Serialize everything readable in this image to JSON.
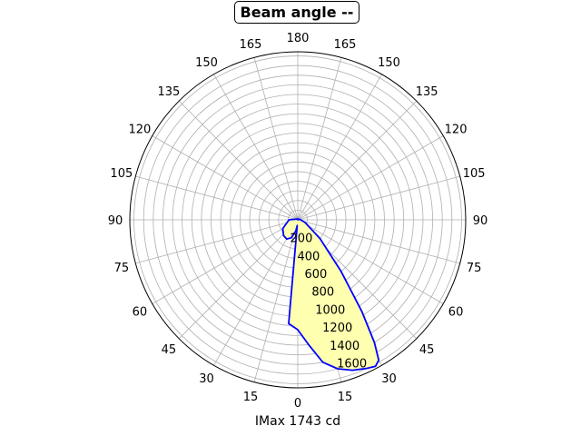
{
  "chart_data": {
    "type": "polar",
    "title": "Beam angle --",
    "xlabel": "IMax 1743 cd",
    "angle_tick_labels_left": [
      "0",
      "15",
      "30",
      "45",
      "60",
      "75",
      "90",
      "105",
      "120",
      "135",
      "150",
      "165",
      "180"
    ],
    "angle_tick_labels_right": [
      "15",
      "30",
      "45",
      "60",
      "75",
      "90",
      "105",
      "120",
      "135",
      "150",
      "165"
    ],
    "radial_ticks": [
      200,
      400,
      600,
      800,
      1000,
      1200,
      1400,
      1600
    ],
    "rlim": [
      0,
      1743
    ],
    "grid": true,
    "fill_color": "#ffffb0",
    "line_color": "#0000ff",
    "series": [
      {
        "r_values_cd": [
          {
            "angle": -5,
            "r": 1080
          },
          {
            "angle": 0,
            "r": 1140
          },
          {
            "angle": 5,
            "r": 1300
          },
          {
            "angle": 10,
            "r": 1500
          },
          {
            "angle": 15,
            "r": 1600
          },
          {
            "angle": 20,
            "r": 1660
          },
          {
            "angle": 25,
            "r": 1700
          },
          {
            "angle": 28,
            "r": 1720
          },
          {
            "angle": 30,
            "r": 1680
          },
          {
            "angle": 32,
            "r": 1500
          },
          {
            "angle": 35,
            "r": 1160
          },
          {
            "angle": 40,
            "r": 700
          },
          {
            "angle": 50,
            "r": 300
          },
          {
            "angle": 70,
            "r": 80
          },
          {
            "angle": 90,
            "r": 30
          },
          {
            "angle": 150,
            "r": 10
          },
          {
            "angle": 180,
            "r": 0
          },
          {
            "angle": 210,
            "r": 10
          },
          {
            "angle": 270,
            "r": 90
          },
          {
            "angle": 300,
            "r": 180
          },
          {
            "angle": 318,
            "r": 220
          },
          {
            "angle": 330,
            "r": 230
          },
          {
            "angle": 340,
            "r": 200
          },
          {
            "angle": 350,
            "r": 120
          },
          {
            "angle": 355,
            "r": 60
          }
        ]
      }
    ]
  }
}
